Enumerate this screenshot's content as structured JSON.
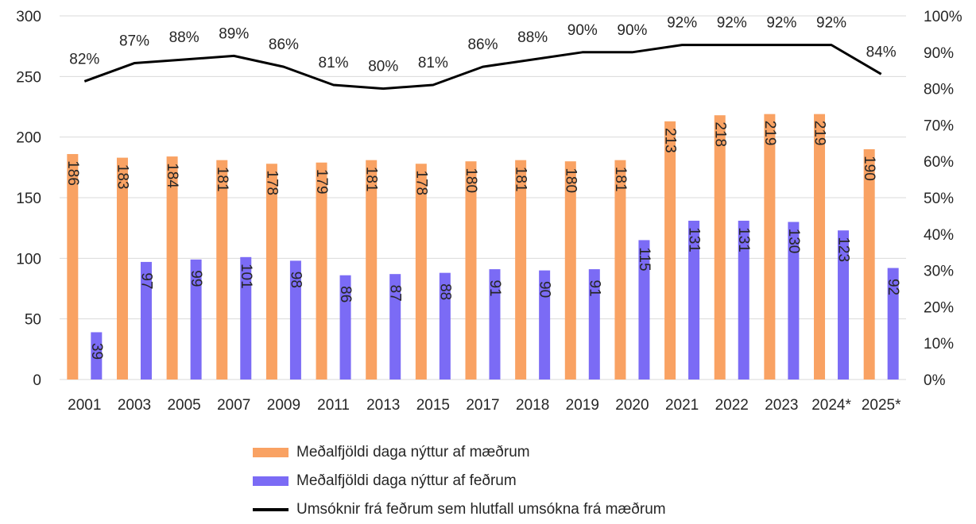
{
  "chart_data": {
    "type": "bar",
    "categories": [
      "2001",
      "2003",
      "2005",
      "2007",
      "2009",
      "2011",
      "2013",
      "2015",
      "2017",
      "2018",
      "2019",
      "2020",
      "2021",
      "2022",
      "2023",
      "2024*",
      "2025*"
    ],
    "series": [
      {
        "name": "Meðalfjöldi daga nýttur af mæðrum",
        "type": "bar",
        "axis": "left",
        "color": "#F9A263",
        "values": [
          186,
          183,
          184,
          181,
          178,
          179,
          181,
          178,
          180,
          181,
          180,
          181,
          213,
          218,
          219,
          219,
          190
        ]
      },
      {
        "name": "Meðalfjöldi daga nýttur af feðrum",
        "type": "bar",
        "axis": "left",
        "color": "#7B6BF5",
        "values": [
          39,
          97,
          99,
          101,
          98,
          86,
          87,
          88,
          91,
          90,
          91,
          115,
          131,
          131,
          130,
          123,
          92
        ]
      },
      {
        "name": "Umsóknir frá feðrum sem hlutfall umsókna frá mæðrum",
        "type": "line",
        "axis": "right",
        "color": "#000000",
        "values": [
          82,
          87,
          88,
          89,
          86,
          81,
          80,
          81,
          86,
          88,
          90,
          90,
          92,
          92,
          92,
          92,
          84
        ],
        "labels": [
          "82%",
          "87%",
          "88%",
          "89%",
          "86%",
          "81%",
          "80%",
          "81%",
          "86%",
          "88%",
          "90%",
          "90%",
          "92%",
          "92%",
          "92%",
          "92%",
          "84%"
        ]
      }
    ],
    "y_left": {
      "lim": [
        0,
        300
      ],
      "ticks": [
        "0",
        "50",
        "100",
        "150",
        "200",
        "250",
        "300"
      ]
    },
    "y_right": {
      "lim": [
        0,
        100
      ],
      "ticks": [
        "0%",
        "10%",
        "20%",
        "30%",
        "40%",
        "50%",
        "60%",
        "70%",
        "80%",
        "90%",
        "100%"
      ]
    },
    "grid": true,
    "legend": "bottom"
  }
}
